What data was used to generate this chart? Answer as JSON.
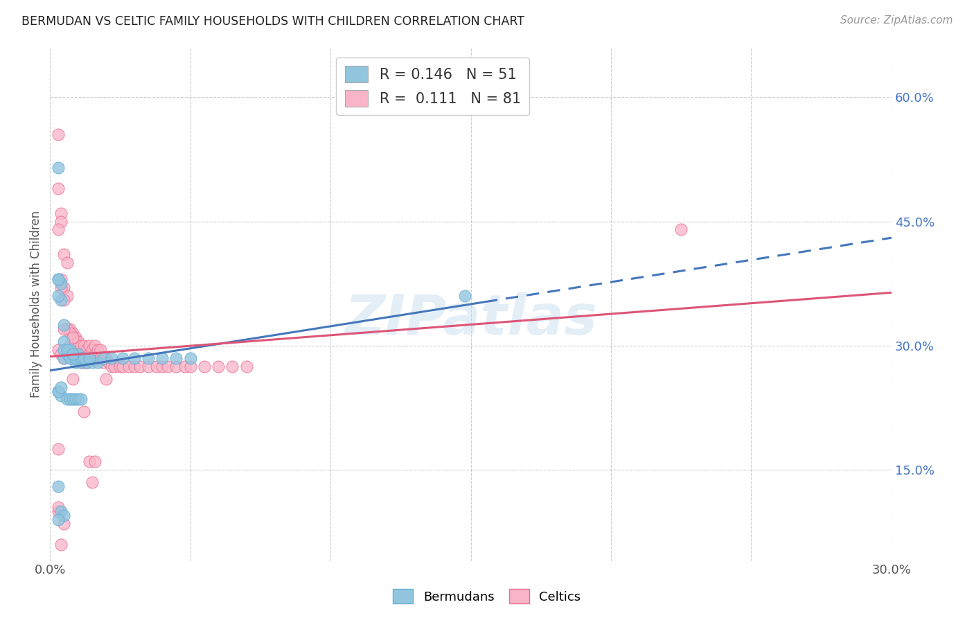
{
  "title": "BERMUDAN VS CELTIC FAMILY HOUSEHOLDS WITH CHILDREN CORRELATION CHART",
  "source": "Source: ZipAtlas.com",
  "ylabel": "Family Households with Children",
  "xlim": [
    0.0,
    0.3
  ],
  "ylim": [
    0.04,
    0.66
  ],
  "x_tick_pos": [
    0.0,
    0.05,
    0.1,
    0.15,
    0.2,
    0.25,
    0.3
  ],
  "x_tick_labels": [
    "0.0%",
    "",
    "",
    "",
    "",
    "",
    "30.0%"
  ],
  "y_tick_pos": [
    0.15,
    0.3,
    0.45,
    0.6
  ],
  "y_tick_labels": [
    "15.0%",
    "30.0%",
    "45.0%",
    "60.0%"
  ],
  "legend_label1": "Bermudans",
  "legend_label2": "Celtics",
  "blue_fill": "#92c5de",
  "blue_edge": "#6aaed6",
  "pink_fill": "#f9b4c8",
  "pink_edge": "#e87090",
  "trend_blue": "#4477bb",
  "trend_pink": "#dd5577",
  "watermark": "ZIPatlas",
  "solid_cutoff": 0.155,
  "bermudans_x": [
    0.005,
    0.01,
    0.012,
    0.005,
    0.004,
    0.003,
    0.003,
    0.008,
    0.006,
    0.005,
    0.007,
    0.004,
    0.003,
    0.009,
    0.007,
    0.005,
    0.003,
    0.011,
    0.009,
    0.006,
    0.013,
    0.011,
    0.008,
    0.015,
    0.012,
    0.017,
    0.014,
    0.019,
    0.022,
    0.026,
    0.03,
    0.035,
    0.04,
    0.045,
    0.05,
    0.003,
    0.004,
    0.006,
    0.007,
    0.008,
    0.009,
    0.01,
    0.011,
    0.003,
    0.004,
    0.005,
    0.003,
    0.004,
    0.003,
    0.148
  ],
  "bermudans_y": [
    0.285,
    0.29,
    0.285,
    0.325,
    0.375,
    0.38,
    0.515,
    0.285,
    0.29,
    0.305,
    0.295,
    0.355,
    0.38,
    0.28,
    0.285,
    0.295,
    0.36,
    0.28,
    0.285,
    0.295,
    0.28,
    0.285,
    0.29,
    0.28,
    0.285,
    0.28,
    0.285,
    0.285,
    0.285,
    0.285,
    0.285,
    0.285,
    0.285,
    0.285,
    0.285,
    0.245,
    0.24,
    0.235,
    0.235,
    0.235,
    0.235,
    0.235,
    0.235,
    0.13,
    0.1,
    0.095,
    0.245,
    0.25,
    0.09,
    0.36
  ],
  "celtics_x": [
    0.003,
    0.004,
    0.005,
    0.004,
    0.005,
    0.006,
    0.005,
    0.006,
    0.007,
    0.008,
    0.007,
    0.008,
    0.009,
    0.01,
    0.011,
    0.01,
    0.011,
    0.012,
    0.013,
    0.012,
    0.013,
    0.014,
    0.015,
    0.014,
    0.015,
    0.016,
    0.017,
    0.016,
    0.017,
    0.018,
    0.019,
    0.018,
    0.02,
    0.021,
    0.022,
    0.023,
    0.025,
    0.026,
    0.028,
    0.03,
    0.032,
    0.035,
    0.038,
    0.04,
    0.042,
    0.045,
    0.048,
    0.05,
    0.055,
    0.06,
    0.065,
    0.07,
    0.003,
    0.004,
    0.005,
    0.006,
    0.007,
    0.008,
    0.009,
    0.01,
    0.011,
    0.012,
    0.013,
    0.014,
    0.015,
    0.016,
    0.004,
    0.005,
    0.008,
    0.012,
    0.02,
    0.004,
    0.003,
    0.005,
    0.003,
    0.004,
    0.003,
    0.003,
    0.003,
    0.225
  ],
  "celtics_y": [
    0.295,
    0.29,
    0.285,
    0.38,
    0.37,
    0.36,
    0.41,
    0.4,
    0.3,
    0.29,
    0.32,
    0.315,
    0.31,
    0.285,
    0.28,
    0.305,
    0.3,
    0.295,
    0.28,
    0.3,
    0.295,
    0.29,
    0.285,
    0.3,
    0.295,
    0.29,
    0.285,
    0.3,
    0.295,
    0.285,
    0.28,
    0.295,
    0.285,
    0.28,
    0.275,
    0.275,
    0.275,
    0.275,
    0.275,
    0.275,
    0.275,
    0.275,
    0.275,
    0.275,
    0.275,
    0.275,
    0.275,
    0.275,
    0.275,
    0.275,
    0.275,
    0.275,
    0.49,
    0.46,
    0.355,
    0.32,
    0.315,
    0.31,
    0.29,
    0.285,
    0.285,
    0.28,
    0.28,
    0.16,
    0.135,
    0.16,
    0.37,
    0.32,
    0.26,
    0.22,
    0.26,
    0.06,
    0.1,
    0.085,
    0.555,
    0.45,
    0.175,
    0.105,
    0.44,
    0.44
  ]
}
